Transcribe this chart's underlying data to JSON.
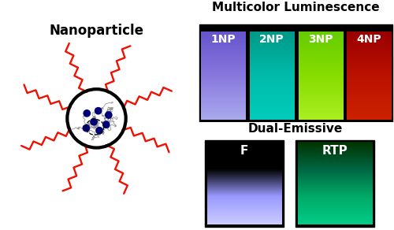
{
  "nanoparticle_label": "Nanoparticle",
  "multicolor_label": "Multicolor Luminescence",
  "dual_label": "Dual-Emissive",
  "np_labels": [
    "1NP",
    "2NP",
    "3NP",
    "4NP"
  ],
  "vial_colors": [
    [
      "#6655cc",
      "#8877dd",
      "#aaaaee",
      "#bbbbff"
    ],
    [
      "#009988",
      "#00bbaa",
      "#00ccbb",
      "#22ddcc"
    ],
    [
      "#66cc00",
      "#88dd00",
      "#aaee22",
      "#ccff44"
    ],
    [
      "#990000",
      "#bb1100",
      "#cc2200",
      "#dd3300"
    ]
  ],
  "dual_colors": [
    [
      "#000000",
      "#000000",
      "#9999ff",
      "#ccccff"
    ],
    [
      "#003300",
      "#006644",
      "#00aa66",
      "#00cc88"
    ]
  ],
  "dual_labels": [
    "F",
    "RTP"
  ],
  "bg_color": "#ffffff",
  "zigzag_color": "#ee1100",
  "dot_color": "#000077",
  "label_fontsize": 11,
  "vial_label_fontsize": 10
}
